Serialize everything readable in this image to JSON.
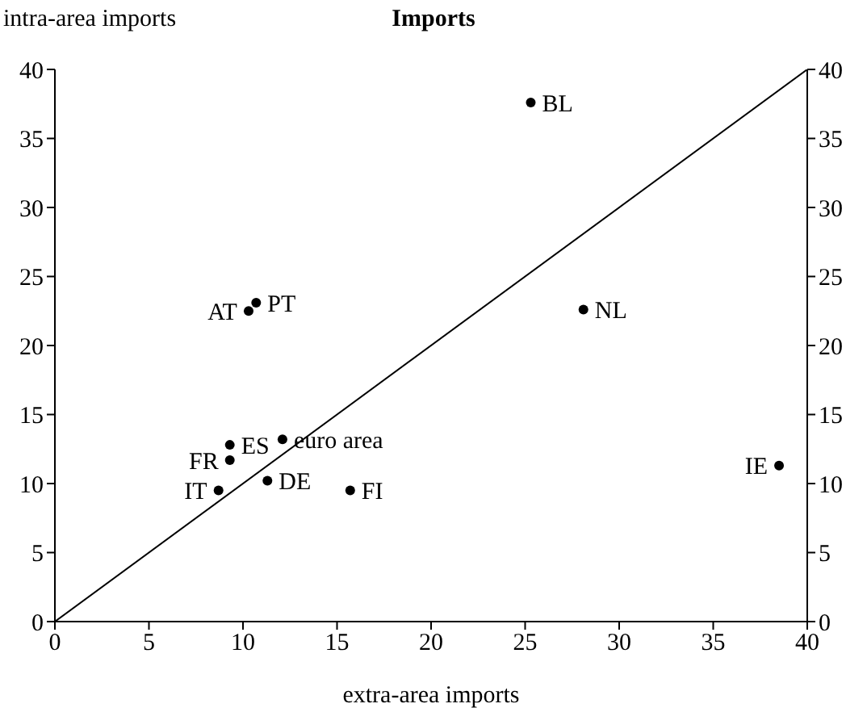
{
  "chart_data": {
    "type": "scatter",
    "title": "Imports",
    "xlabel": "extra-area imports",
    "ylabel": "intra-area imports",
    "xlim": [
      0,
      40
    ],
    "xticks": [
      0,
      5,
      10,
      15,
      20,
      25,
      30,
      35,
      40
    ],
    "ylim": [
      0,
      40
    ],
    "yticks": [
      0,
      5,
      10,
      15,
      20,
      25,
      30,
      35,
      40
    ],
    "y2lim": [
      0,
      40
    ],
    "y2ticks": [
      0,
      5,
      10,
      15,
      20,
      25,
      30,
      35,
      40
    ],
    "grid": false,
    "legend": false,
    "marker": "circle",
    "series": [
      {
        "color": "#000000",
        "x": [
          25.3,
          28.1,
          10.7,
          10.3,
          9.3,
          12.1,
          9.3,
          11.3,
          8.7,
          15.7,
          38.5
        ],
        "values": [
          37.6,
          22.6,
          23.1,
          22.5,
          12.8,
          13.2,
          11.7,
          10.2,
          9.5,
          9.5,
          11.3
        ]
      },
      {
        "type": "line",
        "color": "#000000",
        "marker": "none",
        "x": [
          0,
          40
        ],
        "values": [
          0,
          40
        ]
      }
    ],
    "annotations": [
      {
        "text": "BL",
        "x": 25.3,
        "y": 37.6
      },
      {
        "text": "NL",
        "x": 28.1,
        "y": 22.6
      },
      {
        "text": "PT",
        "x": 10.7,
        "y": 23.1
      },
      {
        "text": "AT",
        "x": 10.3,
        "y": 22.5
      },
      {
        "text": "ES",
        "x": 9.3,
        "y": 12.8
      },
      {
        "text": "euro area",
        "x": 12.1,
        "y": 13.2
      },
      {
        "text": "FR",
        "x": 9.3,
        "y": 11.7
      },
      {
        "text": "DE",
        "x": 11.3,
        "y": 10.2
      },
      {
        "text": "IT",
        "x": 8.7,
        "y": 9.5
      },
      {
        "text": "FI",
        "x": 15.7,
        "y": 9.5
      },
      {
        "text": "IE",
        "x": 38.5,
        "y": 11.3
      }
    ]
  }
}
